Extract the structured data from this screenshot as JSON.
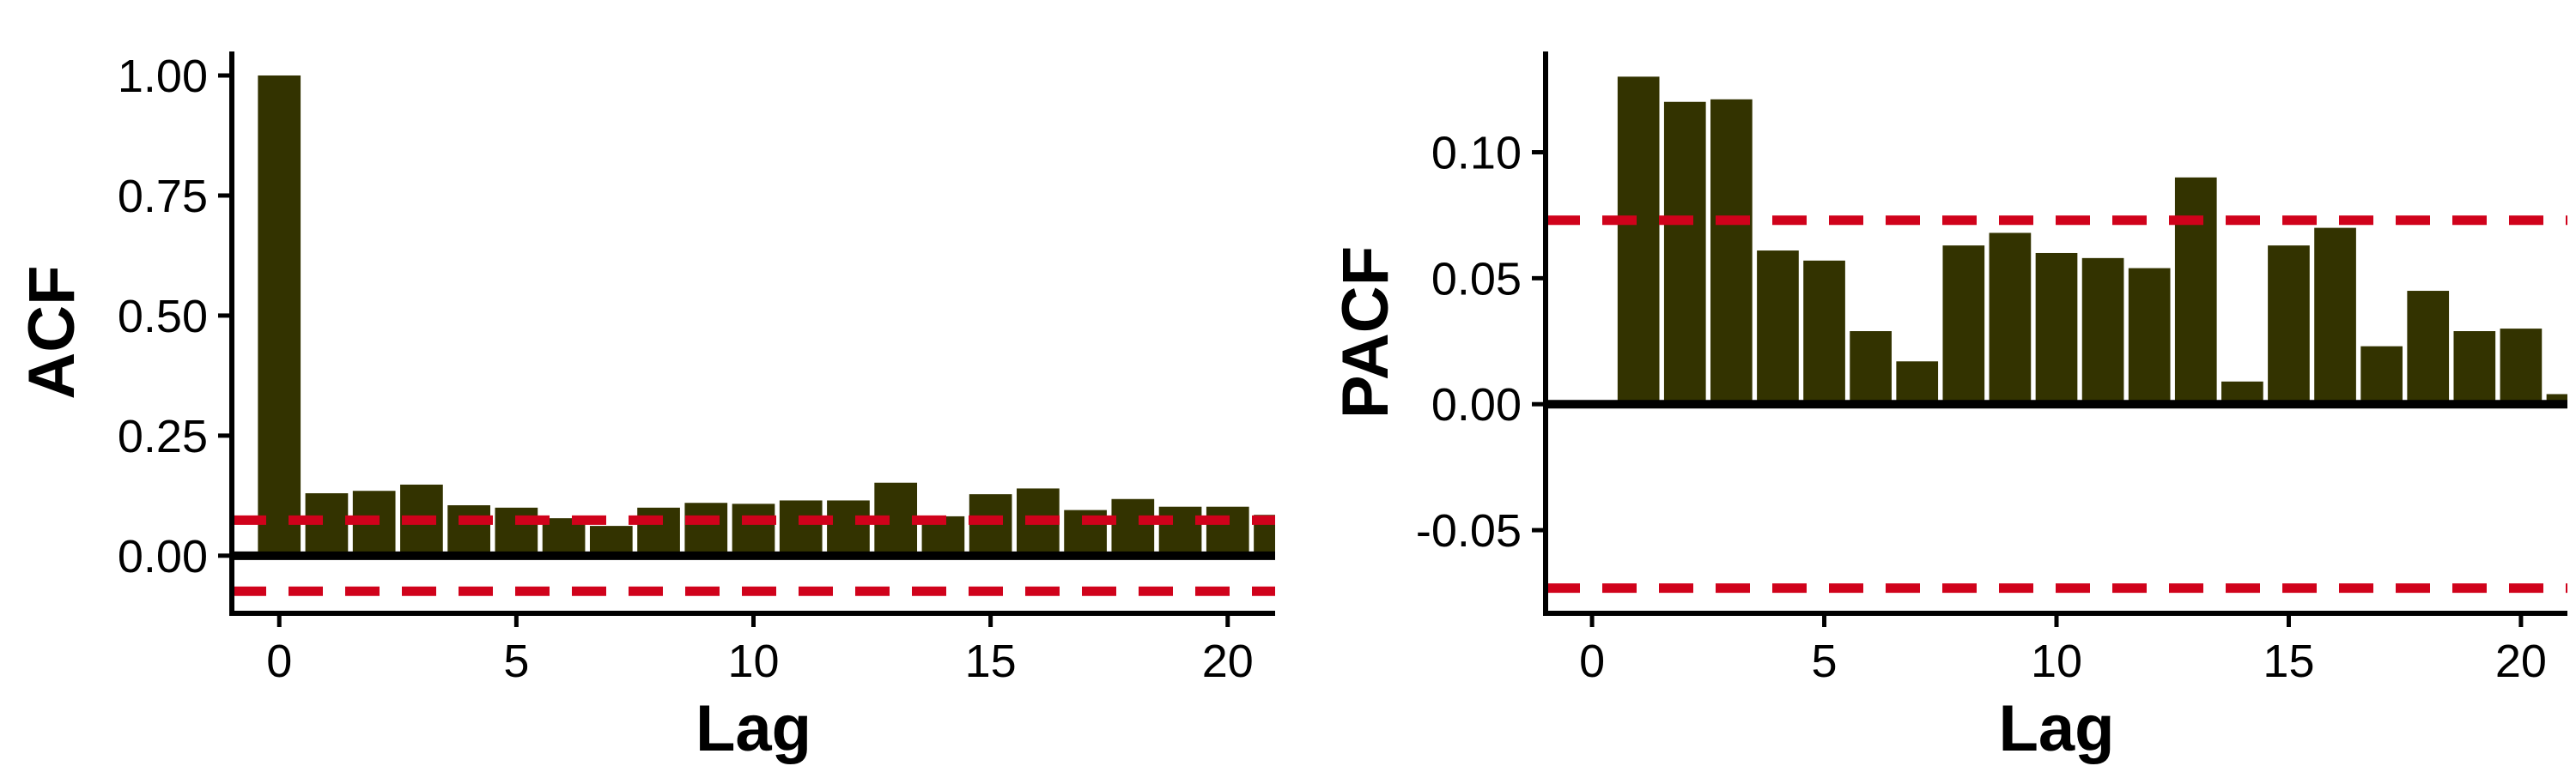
{
  "colors": {
    "bar": "#333300",
    "confidence_line": "#D0021B",
    "axis": "#000000",
    "background": "#FFFFFF"
  },
  "chart_data": [
    {
      "type": "bar",
      "xlabel": "Lag",
      "ylabel": "ACF",
      "xlim": [
        -1,
        21
      ],
      "ylim": [
        -0.12,
        1.05
      ],
      "xticks": [
        0,
        5,
        10,
        15,
        20
      ],
      "yticks": [
        0.0,
        0.25,
        0.5,
        0.75,
        1.0
      ],
      "ytick_labels": [
        "0.00",
        "0.25",
        "0.50",
        "0.75",
        "1.00"
      ],
      "lags": [
        0,
        1,
        2,
        3,
        4,
        5,
        6,
        7,
        8,
        9,
        10,
        11,
        12,
        13,
        14,
        15,
        16,
        17,
        18,
        19,
        20,
        21
      ],
      "values": [
        1.0,
        0.13,
        0.135,
        0.148,
        0.105,
        0.1,
        0.078,
        0.062,
        0.1,
        0.11,
        0.108,
        0.115,
        0.115,
        0.152,
        0.082,
        0.128,
        0.14,
        0.095,
        0.118,
        0.102,
        0.102,
        0.085
      ],
      "confidence_bounds": [
        0.074,
        -0.074
      ],
      "grid": false
    },
    {
      "type": "bar",
      "xlabel": "Lag",
      "ylabel": "PACF",
      "xlim": [
        -1,
        21
      ],
      "ylim": [
        -0.083,
        0.14
      ],
      "xticks": [
        0,
        5,
        10,
        15,
        20
      ],
      "yticks": [
        -0.05,
        0.0,
        0.05,
        0.1
      ],
      "ytick_labels": [
        "-0.05",
        "0.00",
        "0.05",
        "0.10"
      ],
      "lags": [
        1,
        2,
        3,
        4,
        5,
        6,
        7,
        8,
        9,
        10,
        11,
        12,
        13,
        14,
        15,
        16,
        17,
        18,
        19,
        20,
        21
      ],
      "values": [
        0.13,
        0.12,
        0.121,
        0.061,
        0.057,
        0.029,
        0.017,
        0.063,
        0.068,
        0.06,
        0.058,
        0.054,
        0.09,
        0.009,
        0.063,
        0.07,
        0.023,
        0.045,
        0.029,
        0.03,
        0.004
      ],
      "confidence_bounds": [
        0.073,
        -0.073
      ],
      "grid": false
    }
  ]
}
